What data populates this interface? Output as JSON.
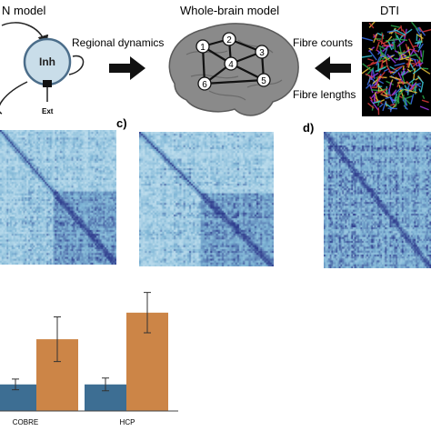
{
  "top_panel": {
    "model_title": "N model",
    "node_label": "Inh",
    "ext_label": "Ext",
    "arrow_label": "Regional dynamics",
    "brain_title": "Whole-brain model",
    "nodes": [
      "1",
      "2",
      "3",
      "4",
      "5",
      "6"
    ],
    "dti_title": "DTI",
    "fibre_counts": "Fibre counts",
    "fibre_lengths": "Fibre lengths"
  },
  "panel_c_label": "c)",
  "panel_d_label": "d)",
  "colors": {
    "heat_low": "#e8f6fb",
    "heat_mid": "#7fb6d6",
    "heat_high": "#3b4fa0",
    "bar_blue": "#3d6e93",
    "bar_orange": "#cc8547",
    "node_fill": "#c9dde9",
    "node_stroke": "#4b6d8a"
  },
  "chart_data": {
    "type": "bar",
    "categories": [
      "COBRE",
      "HCP"
    ],
    "series": [
      {
        "name": "",
        "values": [
          0.5,
          0.5
        ],
        "err": [
          0.1,
          0.12
        ]
      },
      {
        "name": "",
        "values": [
          1.35,
          1.85
        ],
        "err": [
          0.42,
          0.38
        ]
      }
    ],
    "ylim": [
      0,
      2.6
    ],
    "title": "",
    "xlabel": "",
    "ylabel": ""
  }
}
